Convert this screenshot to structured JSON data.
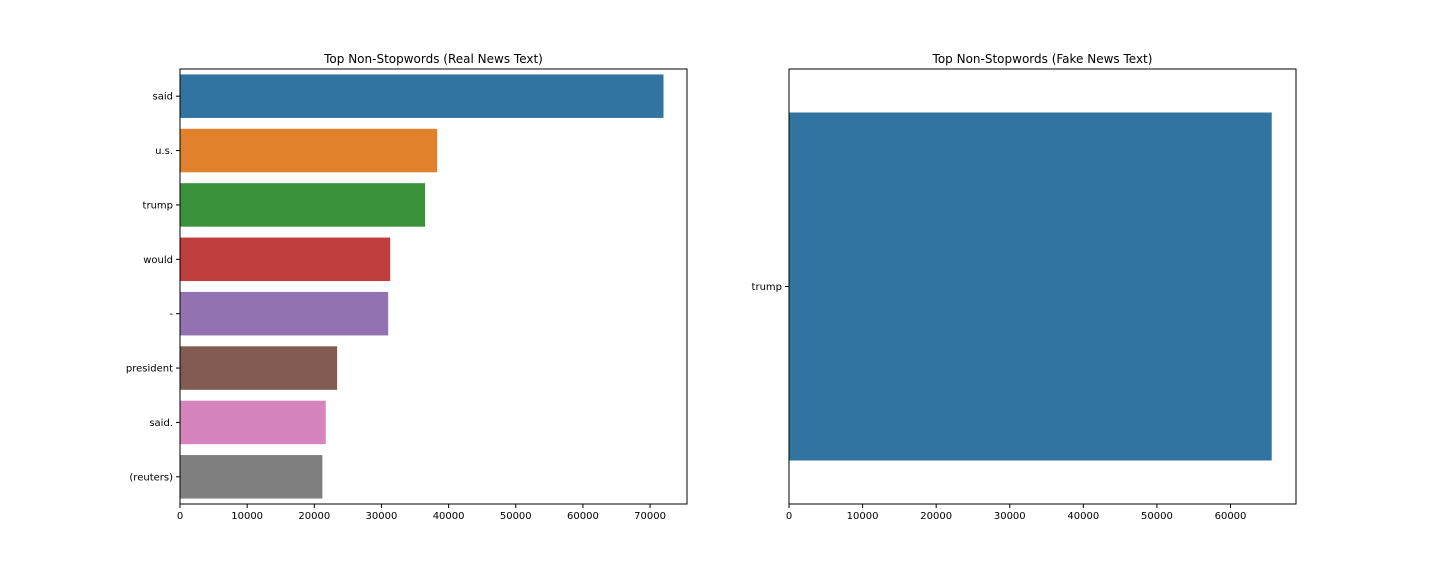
{
  "chart_data": [
    {
      "type": "bar",
      "orientation": "horizontal",
      "title": "Top Non-Stopwords (Real News Text)",
      "xlabel": "",
      "ylabel": "",
      "categories": [
        "said",
        "u.s.",
        "trump",
        "would",
        "-",
        "president",
        "said.",
        "(reuters)"
      ],
      "values": [
        72000,
        38300,
        36500,
        31300,
        31000,
        23400,
        21700,
        21200
      ],
      "colors": [
        "#3274a1",
        "#e1812c",
        "#3a923a",
        "#c03d3e",
        "#9372b2",
        "#845b53",
        "#d684bd",
        "#7f7f7f"
      ],
      "xlim": [
        0,
        75500
      ],
      "xticks": [
        0,
        10000,
        20000,
        30000,
        40000,
        50000,
        60000,
        70000
      ],
      "grid": false
    },
    {
      "type": "bar",
      "orientation": "horizontal",
      "title": "Top Non-Stopwords (Fake News Text)",
      "xlabel": "",
      "ylabel": "",
      "categories": [
        "trump"
      ],
      "values": [
        65600
      ],
      "colors": [
        "#3274a1"
      ],
      "xlim": [
        0,
        68900
      ],
      "xticks": [
        0,
        10000,
        20000,
        30000,
        40000,
        50000,
        60000
      ],
      "grid": false
    }
  ]
}
